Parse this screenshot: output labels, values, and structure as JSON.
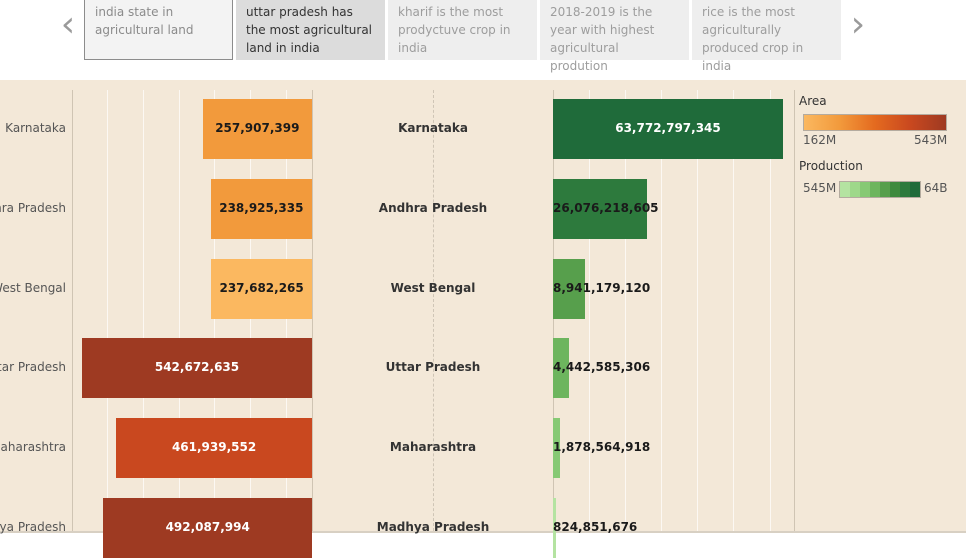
{
  "story": {
    "points": [
      {
        "label": "india state in agricultural land"
      },
      {
        "label": "uttar pradesh has the most agricultural land in india"
      },
      {
        "label": "kharif is the most prodyctuve crop in india"
      },
      {
        "label": "2018-2019 is the year with highest agricultural prodution"
      },
      {
        "label": "rice is the most agriculturally produced crop in india"
      }
    ],
    "prev_glyph": "‹",
    "next_glyph": "›"
  },
  "colors": {
    "area_ramp": [
      "#fbb860",
      "#f29a3c",
      "#e46a1f",
      "#c9481f",
      "#9e3a22"
    ],
    "production_ramp": [
      "#b4e3a1",
      "#9ed88a",
      "#86c974",
      "#6db55e",
      "#579f4c",
      "#3e8a3e",
      "#2d7a3d",
      "#1f6b3a"
    ]
  },
  "legend": {
    "area_title": "Area",
    "area_min": "162M",
    "area_max": "543M",
    "production_title": "Production",
    "production_min": "545M",
    "production_max": "64B"
  },
  "chart_data": {
    "type": "bar",
    "categories": [
      "Karnataka",
      "Andhra Pradesh",
      "West Bengal",
      "Uttar Pradesh",
      "Maharashtra",
      "Madhya Pradesh"
    ],
    "series": [
      {
        "name": "Area",
        "values": [
          257907399,
          238925335,
          237682265,
          542672635,
          461939552,
          492087994
        ],
        "labels": [
          "257,907,399",
          "238,925,335",
          "237,682,265",
          "542,672,635",
          "461,939,552",
          "492,087,994"
        ]
      },
      {
        "name": "Production",
        "values": [
          63772797345,
          26076218605,
          8941179120,
          4442585306,
          1878564918,
          824851676
        ],
        "labels": [
          "63,772,797,345",
          "26,076,218,605",
          "8,941,179,120",
          "4,442,585,306",
          "1,878,564,918",
          "824,851,676"
        ]
      }
    ]
  }
}
